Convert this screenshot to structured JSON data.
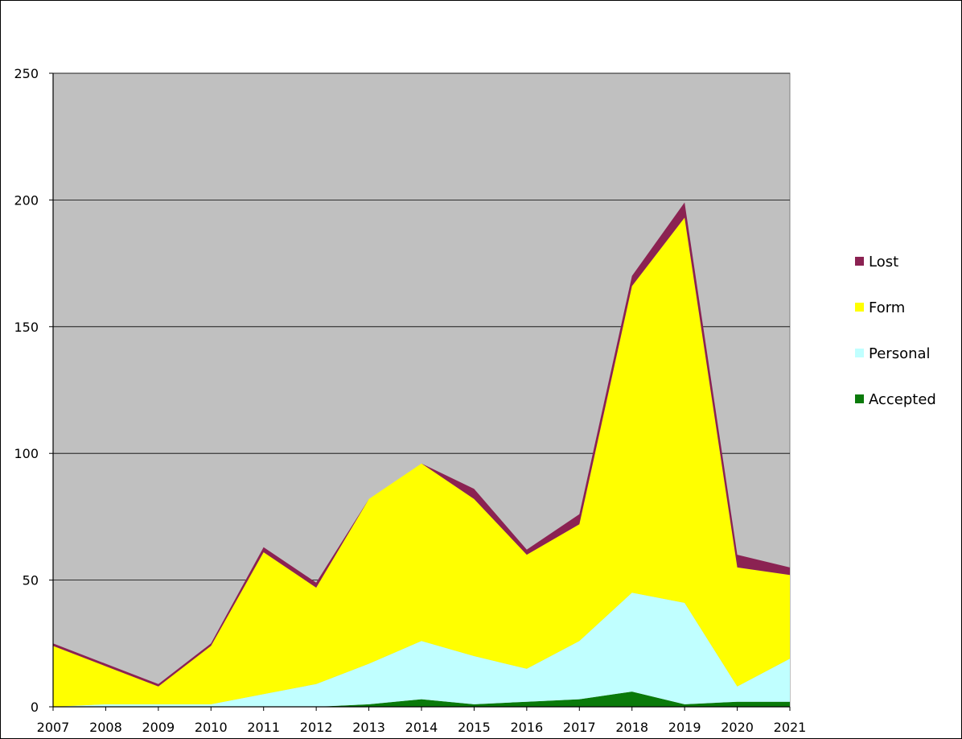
{
  "chart_data": {
    "type": "area",
    "stacked": true,
    "title": "",
    "xlabel": "",
    "ylabel": "",
    "categories": [
      "2007",
      "2008",
      "2009",
      "2010",
      "2011",
      "2012",
      "2013",
      "2014",
      "2015",
      "2016",
      "2017",
      "2018",
      "2019",
      "2020",
      "2021"
    ],
    "series": [
      {
        "name": "Accepted",
        "color": "#0a7a0a",
        "values": [
          0,
          0,
          0,
          0,
          0,
          0,
          1,
          3,
          1,
          2,
          3,
          6,
          1,
          2,
          2
        ]
      },
      {
        "name": "Personal",
        "color": "#c0ffff",
        "values": [
          0,
          1,
          1,
          1,
          5,
          9,
          16,
          23,
          19,
          13,
          23,
          39,
          40,
          6,
          17
        ]
      },
      {
        "name": "Form",
        "color": "#ffff00",
        "values": [
          24,
          15,
          7,
          23,
          56,
          38,
          65,
          70,
          62,
          45,
          46,
          121,
          152,
          47,
          33
        ]
      },
      {
        "name": "Lost",
        "color": "#8b2252",
        "values": [
          1,
          1,
          1,
          1,
          2,
          2,
          0,
          0,
          4,
          2,
          4,
          4,
          6,
          5,
          3
        ]
      }
    ],
    "ylim": [
      0,
      250
    ],
    "yticks": [
      0,
      50,
      100,
      150,
      200,
      250
    ],
    "grid": true,
    "legend": "right",
    "plot_background": "#c0c0c0"
  }
}
